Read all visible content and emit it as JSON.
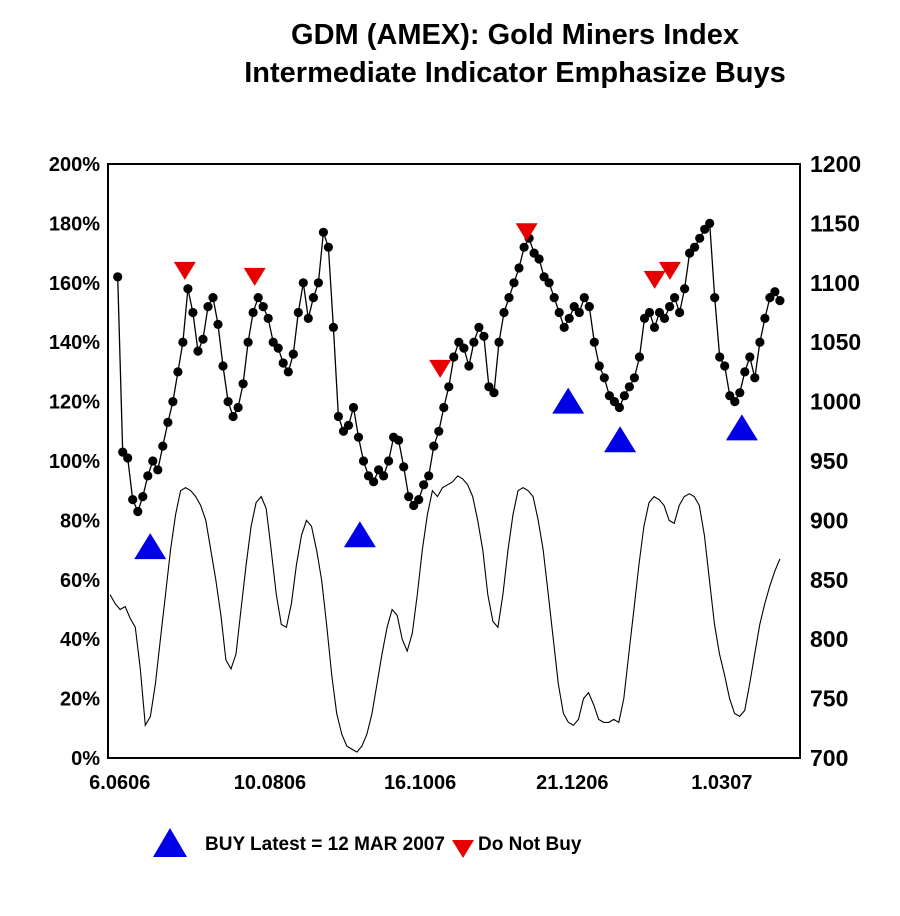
{
  "title": {
    "line1": "GDM (AMEX): Gold Miners Index",
    "line2": "Intermediate Indicator Emphasize Buys"
  },
  "colors": {
    "buy": "#0000e6",
    "do_not_buy": "#e60000",
    "series": "#000000",
    "background": "#ffffff"
  },
  "legend": {
    "buy_label": "BUY Latest = 12 MAR 2007",
    "do_not_buy_label": "Do Not Buy"
  },
  "chart_data": {
    "type": "line",
    "title": "GDM (AMEX): Gold Miners Index — Intermediate Indicator Emphasize Buys",
    "grid": "off",
    "left_axis": {
      "min": 0,
      "max": 200,
      "step": 20,
      "tick_labels": [
        "0%",
        "20%",
        "40%",
        "60%",
        "80%",
        "100%",
        "120%",
        "140%",
        "160%",
        "180%",
        "200%"
      ]
    },
    "right_axis": {
      "min": 700,
      "max": 1200,
      "step": 50,
      "tick_labels": [
        "700",
        "750",
        "800",
        "850",
        "900",
        "950",
        "1000",
        "1050",
        "1100",
        "1150",
        "1200"
      ]
    },
    "x_axis": {
      "tick_labels": [
        "6.0606",
        "10.0806",
        "16.1006",
        "21.1206",
        "1.0307"
      ],
      "tick_positions_pct": [
        1.7,
        23.4,
        45.1,
        67.1,
        88.7
      ]
    },
    "series": [
      {
        "id": "index-dot-line",
        "style": "dot-line",
        "axis": "left",
        "x_start_pct": 1.4,
        "x_end_pct": 97.1,
        "values": [
          162,
          103,
          101,
          87,
          83,
          88,
          95,
          100,
          97,
          105,
          113,
          120,
          130,
          140,
          158,
          150,
          137,
          141,
          152,
          155,
          146,
          132,
          120,
          115,
          118,
          126,
          140,
          150,
          155,
          152,
          148,
          140,
          138,
          133,
          130,
          136,
          150,
          160,
          148,
          155,
          160,
          177,
          172,
          145,
          115,
          110,
          112,
          118,
          108,
          100,
          95,
          93,
          97,
          95,
          100,
          108,
          107,
          98,
          88,
          85,
          87,
          92,
          95,
          105,
          110,
          118,
          125,
          135,
          140,
          138,
          132,
          140,
          145,
          142,
          125,
          123,
          140,
          150,
          155,
          160,
          165,
          172,
          175,
          170,
          168,
          162,
          160,
          155,
          150,
          145,
          148,
          152,
          150,
          155,
          152,
          140,
          132,
          128,
          122,
          120,
          118,
          122,
          125,
          128,
          135,
          148,
          150,
          145,
          150,
          148,
          152,
          155,
          150,
          158,
          170,
          172,
          175,
          178,
          180,
          155,
          135,
          132,
          122,
          120,
          123,
          130,
          135,
          128,
          140,
          148,
          155,
          157,
          154
        ]
      },
      {
        "id": "intermediate-indicator",
        "style": "thin-line",
        "axis": "left",
        "x_start_pct": 0.3,
        "x_end_pct": 97.1,
        "values": [
          55,
          52,
          50,
          51,
          47,
          44,
          30,
          11,
          14,
          25,
          40,
          55,
          70,
          82,
          90,
          91,
          90,
          88,
          85,
          80,
          70,
          60,
          48,
          33,
          30,
          35,
          50,
          65,
          78,
          86,
          88,
          84,
          70,
          55,
          45,
          44,
          52,
          65,
          75,
          80,
          78,
          70,
          60,
          45,
          28,
          15,
          8,
          4,
          3,
          2,
          4,
          8,
          15,
          25,
          35,
          44,
          50,
          48,
          40,
          36,
          42,
          55,
          70,
          82,
          90,
          88,
          91,
          92,
          93,
          95,
          94,
          92,
          88,
          80,
          70,
          55,
          46,
          44,
          55,
          70,
          82,
          90,
          91,
          90,
          88,
          80,
          70,
          55,
          40,
          25,
          15,
          12,
          11,
          13,
          20,
          22,
          18,
          13,
          12,
          12,
          13,
          12,
          20,
          35,
          50,
          65,
          78,
          86,
          88,
          87,
          85,
          80,
          79,
          85,
          88,
          89,
          88,
          85,
          75,
          60,
          45,
          35,
          28,
          20,
          15,
          14,
          16,
          25,
          35,
          45,
          52,
          58,
          63,
          67
        ]
      }
    ],
    "buy_signals": [
      {
        "x_pct": 6.1,
        "y_pct": 71
      },
      {
        "x_pct": 36.4,
        "y_pct": 75
      },
      {
        "x_pct": 66.5,
        "y_pct": 120
      },
      {
        "x_pct": 74.0,
        "y_pct": 107
      },
      {
        "x_pct": 91.6,
        "y_pct": 111
      }
    ],
    "do_not_buy_signals": [
      {
        "x_pct": 11.1,
        "y_pct": 164
      },
      {
        "x_pct": 21.2,
        "y_pct": 162
      },
      {
        "x_pct": 48.0,
        "y_pct": 131
      },
      {
        "x_pct": 60.5,
        "y_pct": 177
      },
      {
        "x_pct": 79.0,
        "y_pct": 161
      },
      {
        "x_pct": 81.2,
        "y_pct": 164
      }
    ]
  }
}
